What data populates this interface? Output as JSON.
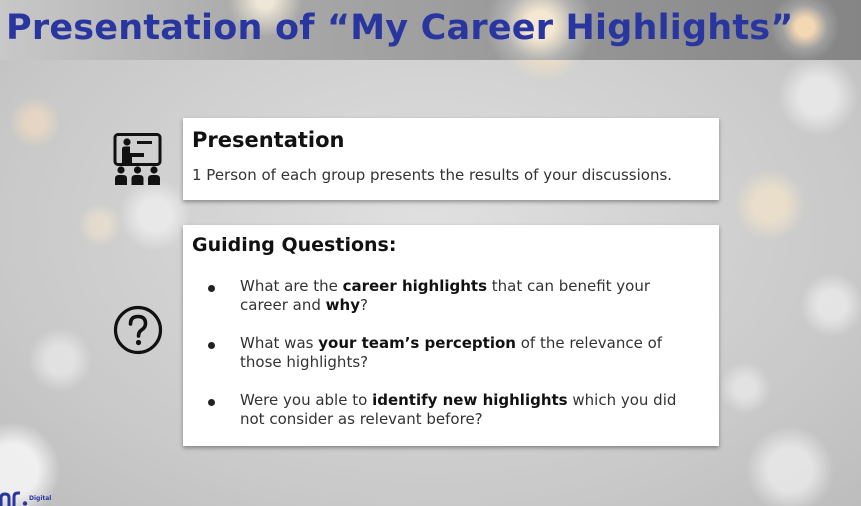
{
  "slide": {
    "title": "Presentation of “My Career Highlights”"
  },
  "presentation_card": {
    "heading": "Presentation",
    "text": "1 Person of each group presents the results of your discussions.",
    "icon": "presenter-icon"
  },
  "questions_card": {
    "heading": "Guiding Questions:",
    "icon": "question-circle-icon",
    "items": [
      {
        "parts": [
          {
            "t": "What are the "
          },
          {
            "t": "career highlights",
            "b": true
          },
          {
            "t": " that can benefit your career and "
          },
          {
            "t": "why",
            "b": true
          },
          {
            "t": "?"
          }
        ]
      },
      {
        "parts": [
          {
            "t": "What was "
          },
          {
            "t": "your team’s perception",
            "b": true
          },
          {
            "t": " of the relevance of those highlights?"
          }
        ]
      },
      {
        "parts": [
          {
            "t": "Were you able to "
          },
          {
            "t": "identify new highlights",
            "b": true
          },
          {
            "t": " which you did not consider as relevant before?"
          }
        ]
      }
    ]
  },
  "footer": {
    "logo_text": "Digital",
    "logo_icon": "company-logo-icon"
  },
  "colors": {
    "title": "#2a36a0",
    "card_bg": "#ffffff",
    "text": "#333333"
  }
}
